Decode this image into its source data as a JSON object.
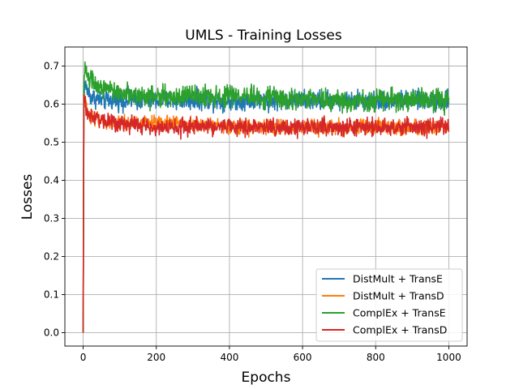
{
  "chart_data": {
    "type": "line",
    "title": "UMLS - Training Losses",
    "xlabel": "Epochs",
    "ylabel": "Losses",
    "xlim": [
      -50,
      1050
    ],
    "ylim": [
      -0.035,
      0.75
    ],
    "xticks": [
      0,
      200,
      400,
      600,
      800,
      1000
    ],
    "xtick_labels": [
      "0",
      "200",
      "400",
      "600",
      "800",
      "1000"
    ],
    "yticks": [
      0.0,
      0.1,
      0.2,
      0.3,
      0.4,
      0.5,
      0.6,
      0.7
    ],
    "ytick_labels": [
      "0.0",
      "0.1",
      "0.2",
      "0.3",
      "0.4",
      "0.5",
      "0.6",
      "0.7"
    ],
    "grid": true,
    "legend_position": "lower-right",
    "series": [
      {
        "name": "DistMult + TransE",
        "color": "#1f77b4",
        "x": [
          0,
          2,
          5,
          10,
          20,
          50,
          100,
          200,
          300,
          400,
          500,
          600,
          700,
          800,
          900,
          1000
        ],
        "values": [
          0.0,
          0.64,
          0.65,
          0.64,
          0.62,
          0.61,
          0.61,
          0.61,
          0.61,
          0.61,
          0.61,
          0.61,
          0.61,
          0.61,
          0.61,
          0.61
        ],
        "noise": 0.022
      },
      {
        "name": "DistMult + TransD",
        "color": "#ff7f0e",
        "x": [
          0,
          2,
          5,
          10,
          20,
          50,
          100,
          200,
          300,
          400,
          500,
          600,
          700,
          800,
          900,
          1000
        ],
        "values": [
          0.0,
          0.6,
          0.61,
          0.59,
          0.57,
          0.55,
          0.55,
          0.55,
          0.55,
          0.54,
          0.54,
          0.54,
          0.54,
          0.54,
          0.54,
          0.54
        ],
        "noise": 0.018
      },
      {
        "name": "ComplEx + TransE",
        "color": "#2ca02c",
        "x": [
          0,
          2,
          5,
          10,
          20,
          50,
          100,
          200,
          300,
          400,
          500,
          600,
          700,
          800,
          900,
          1000
        ],
        "values": [
          0.0,
          0.66,
          0.7,
          0.68,
          0.66,
          0.64,
          0.63,
          0.62,
          0.62,
          0.62,
          0.62,
          0.61,
          0.61,
          0.61,
          0.61,
          0.61
        ],
        "noise": 0.025
      },
      {
        "name": "ComplEx + TransD",
        "color": "#d62728",
        "x": [
          0,
          2,
          5,
          10,
          20,
          50,
          100,
          200,
          300,
          400,
          500,
          600,
          700,
          800,
          900,
          1000
        ],
        "values": [
          0.0,
          0.62,
          0.6,
          0.58,
          0.57,
          0.56,
          0.55,
          0.54,
          0.54,
          0.54,
          0.54,
          0.54,
          0.54,
          0.54,
          0.54,
          0.54
        ],
        "noise": 0.02
      }
    ]
  }
}
